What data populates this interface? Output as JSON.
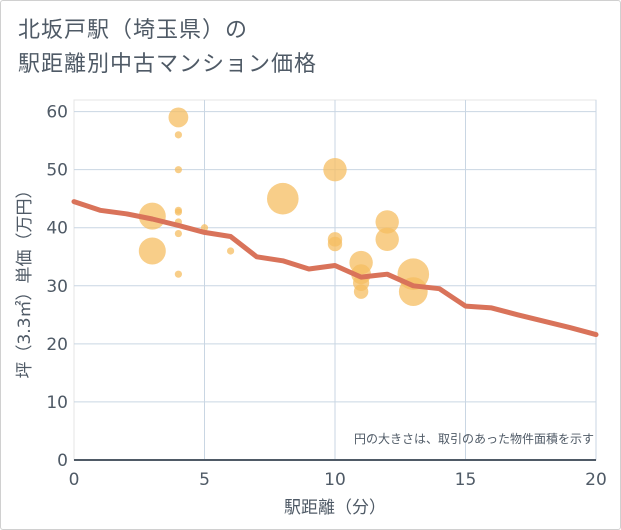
{
  "title": {
    "line1": "北坂戸駅（埼玉県）の",
    "line2": "駅距離別中古マンション価格"
  },
  "chart_data": {
    "type": "scatter",
    "xlabel": "駅距離（分）",
    "ylabel": "坪（3.3㎡）単価（万円）",
    "xlim": [
      0,
      20
    ],
    "ylim": [
      0,
      62
    ],
    "xticks": [
      "0",
      "5",
      "10",
      "15",
      "20"
    ],
    "yticks": [
      "0",
      "10",
      "20",
      "30",
      "40",
      "50",
      "60"
    ],
    "note": "円の大きさは、取引のあった物件面積を示す",
    "bubble_color": "#f5bd62",
    "line_color": "#d9735a",
    "points": [
      {
        "x": 3,
        "y": 42,
        "size": 3
      },
      {
        "x": 3,
        "y": 36,
        "size": 3
      },
      {
        "x": 4,
        "y": 59,
        "size": 2.2
      },
      {
        "x": 4,
        "y": 56,
        "size": 0.8
      },
      {
        "x": 4,
        "y": 50,
        "size": 0.8
      },
      {
        "x": 4,
        "y": 43,
        "size": 0.8
      },
      {
        "x": 4,
        "y": 42.7,
        "size": 0.8
      },
      {
        "x": 4,
        "y": 41,
        "size": 0.8
      },
      {
        "x": 4,
        "y": 39,
        "size": 0.8
      },
      {
        "x": 4,
        "y": 32,
        "size": 0.8
      },
      {
        "x": 5,
        "y": 40,
        "size": 0.8
      },
      {
        "x": 6,
        "y": 36,
        "size": 0.8
      },
      {
        "x": 8,
        "y": 45,
        "size": 3.5
      },
      {
        "x": 10,
        "y": 50,
        "size": 2.6
      },
      {
        "x": 10,
        "y": 38,
        "size": 1.6
      },
      {
        "x": 10,
        "y": 37.2,
        "size": 1.6
      },
      {
        "x": 11,
        "y": 34,
        "size": 2.6
      },
      {
        "x": 11,
        "y": 32,
        "size": 2.2
      },
      {
        "x": 11,
        "y": 30.5,
        "size": 1.8
      },
      {
        "x": 11,
        "y": 29,
        "size": 1.6
      },
      {
        "x": 12,
        "y": 41,
        "size": 2.6
      },
      {
        "x": 12,
        "y": 38,
        "size": 2.6
      },
      {
        "x": 13,
        "y": 32,
        "size": 3.5
      },
      {
        "x": 13,
        "y": 29,
        "size": 3.2
      }
    ],
    "trend": {
      "x": [
        0,
        1,
        2,
        3,
        4,
        5,
        6,
        7,
        8,
        9,
        10,
        11,
        12,
        13,
        14,
        15,
        16,
        17,
        18,
        19,
        20
      ],
      "y": [
        44.5,
        43,
        42.4,
        41.5,
        40.4,
        39.2,
        38.5,
        35,
        34.3,
        32.9,
        33.5,
        31.5,
        32,
        30,
        29.5,
        26.5,
        26.2,
        25,
        23.9,
        22.8,
        21.6
      ]
    }
  }
}
